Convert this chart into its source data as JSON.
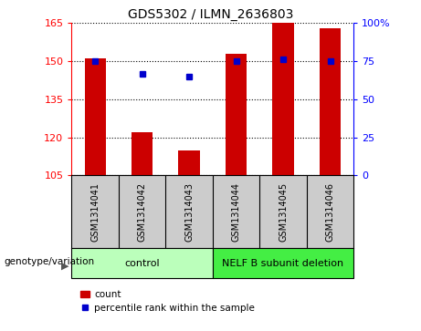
{
  "title": "GDS5302 / ILMN_2636803",
  "samples": [
    "GSM1314041",
    "GSM1314042",
    "GSM1314043",
    "GSM1314044",
    "GSM1314045",
    "GSM1314046"
  ],
  "counts": [
    151,
    122,
    115,
    153,
    165,
    163
  ],
  "percentile_ranks": [
    75,
    67,
    65,
    75,
    76,
    75
  ],
  "ylim_left": [
    105,
    165
  ],
  "yticks_left": [
    105,
    120,
    135,
    150,
    165
  ],
  "ylim_right": [
    0,
    100
  ],
  "yticks_right": [
    0,
    25,
    50,
    75,
    100
  ],
  "bar_color": "#cc0000",
  "dot_color": "#0000cc",
  "groups": [
    {
      "label": "control",
      "samples": [
        0,
        1,
        2
      ],
      "color": "#bbffbb"
    },
    {
      "label": "NELF B subunit deletion",
      "samples": [
        3,
        4,
        5
      ],
      "color": "#44ee44"
    }
  ],
  "group_label_text": "genotype/variation",
  "legend_count_label": "count",
  "legend_percentile_label": "percentile rank within the sample",
  "background_color": "#ffffff",
  "sample_bg_color": "#cccccc",
  "bar_width": 0.45
}
